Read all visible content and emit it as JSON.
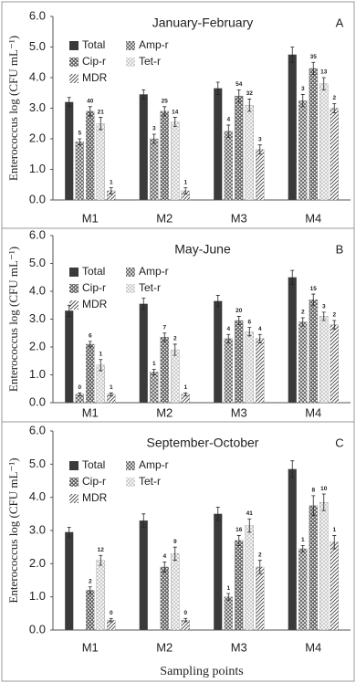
{
  "chart_data": [
    {
      "type": "bar",
      "title": "January-February",
      "panel_label": "A",
      "y_label": "Enterococcus log (CFU mL⁻¹)",
      "categories": [
        "M1",
        "M2",
        "M3",
        "M4"
      ],
      "ylim": [
        0,
        6
      ],
      "yticks": [
        {
          "value": 0,
          "label": "0.0"
        },
        {
          "value": 1,
          "label": "1.0"
        },
        {
          "value": 2,
          "label": "2.0"
        },
        {
          "value": 3,
          "label": "3.0"
        },
        {
          "value": 4,
          "label": "4.0"
        },
        {
          "value": 5,
          "label": "5.0"
        },
        {
          "value": 6,
          "label": "6.0"
        }
      ],
      "series": [
        {
          "name": "Total",
          "color": "#3a3a3a",
          "pattern": "solid",
          "values": [
            3.2,
            3.45,
            3.65,
            4.75
          ],
          "errors": [
            0.15,
            0.15,
            0.2,
            0.25
          ],
          "labels": [
            null,
            null,
            null,
            null
          ]
        },
        {
          "name": "Amp-r",
          "color": "#555555",
          "pattern": "crosshatch",
          "values": [
            1.9,
            2.0,
            2.25,
            3.25
          ],
          "errors": [
            0.1,
            0.15,
            0.2,
            0.2
          ],
          "labels": [
            5,
            3,
            4,
            3
          ]
        },
        {
          "name": "Cip-r",
          "color": "#666666",
          "pattern": "dots",
          "values": [
            2.9,
            2.9,
            3.4,
            4.3
          ],
          "errors": [
            0.15,
            0.15,
            0.2,
            0.2
          ],
          "labels": [
            40,
            25,
            54,
            35
          ]
        },
        {
          "name": "Tet-r",
          "color": "#888888",
          "pattern": "dashes",
          "values": [
            2.5,
            2.55,
            3.1,
            3.8
          ],
          "errors": [
            0.2,
            0.15,
            0.2,
            0.2
          ],
          "labels": [
            21,
            14,
            32,
            13
          ]
        },
        {
          "name": "MDR",
          "color": "#444444",
          "pattern": "diagonal",
          "values": [
            0.3,
            0.3,
            1.65,
            3.0
          ],
          "errors": [
            0.1,
            0.1,
            0.15,
            0.15
          ],
          "labels": [
            1,
            1,
            3,
            2
          ]
        }
      ]
    },
    {
      "type": "bar",
      "title": "May-June",
      "panel_label": "B",
      "y_label": "Enterococcus log (CFU mL⁻¹)",
      "categories": [
        "M1",
        "M2",
        "M3",
        "M4"
      ],
      "ylim": [
        0,
        6
      ],
      "yticks": [
        {
          "value": 0,
          "label": "0.0"
        },
        {
          "value": 1,
          "label": "1.0"
        },
        {
          "value": 2,
          "label": "2.0"
        },
        {
          "value": 3,
          "label": "3.0"
        },
        {
          "value": 4,
          "label": "4.0"
        },
        {
          "value": 5,
          "label": "5.0"
        },
        {
          "value": 6,
          "label": "6.0"
        }
      ],
      "series": [
        {
          "name": "Total",
          "color": "#3a3a3a",
          "pattern": "solid",
          "values": [
            3.3,
            3.55,
            3.65,
            4.5
          ],
          "errors": [
            0.2,
            0.2,
            0.2,
            0.25
          ],
          "labels": [
            null,
            null,
            null,
            null
          ]
        },
        {
          "name": "Amp-r",
          "color": "#555555",
          "pattern": "crosshatch",
          "values": [
            0.3,
            1.1,
            2.3,
            2.9
          ],
          "errors": [
            0.05,
            0.1,
            0.15,
            0.15
          ],
          "labels": [
            0,
            1,
            4,
            2
          ]
        },
        {
          "name": "Cip-r",
          "color": "#666666",
          "pattern": "dots",
          "values": [
            2.1,
            2.35,
            2.95,
            3.7
          ],
          "errors": [
            0.1,
            0.15,
            0.15,
            0.2
          ],
          "labels": [
            6,
            7,
            20,
            15
          ]
        },
        {
          "name": "Tet-r",
          "color": "#888888",
          "pattern": "dashes",
          "values": [
            1.35,
            1.9,
            2.55,
            3.1
          ],
          "errors": [
            0.2,
            0.2,
            0.15,
            0.15
          ],
          "labels": [
            1,
            2,
            6,
            3
          ]
        },
        {
          "name": "MDR",
          "color": "#444444",
          "pattern": "diagonal",
          "values": [
            0.3,
            0.3,
            2.3,
            2.8
          ],
          "errors": [
            0.05,
            0.05,
            0.15,
            0.15
          ],
          "labels": [
            1,
            1,
            4,
            2
          ]
        }
      ]
    },
    {
      "type": "bar",
      "title": "September-October",
      "panel_label": "C",
      "y_label": "Enterococcus log (CFU mL⁻¹)",
      "x_label": "Sampling points",
      "categories": [
        "M1",
        "M2",
        "M3",
        "M4"
      ],
      "ylim": [
        0,
        6
      ],
      "yticks": [
        {
          "value": 0,
          "label": "0.0"
        },
        {
          "value": 1,
          "label": "1.0"
        },
        {
          "value": 2,
          "label": "2.0"
        },
        {
          "value": 3,
          "label": "3.0"
        },
        {
          "value": 4,
          "label": "4.0"
        },
        {
          "value": 5,
          "label": "5.0"
        },
        {
          "value": 6,
          "label": "6.0"
        }
      ],
      "series": [
        {
          "name": "Total",
          "color": "#3a3a3a",
          "pattern": "solid",
          "values": [
            2.95,
            3.3,
            3.5,
            4.85
          ],
          "errors": [
            0.15,
            0.2,
            0.2,
            0.25
          ],
          "labels": [
            null,
            null,
            null,
            null
          ]
        },
        {
          "name": "Amp-r",
          "color": "#555555",
          "pattern": "crosshatch",
          "values": [
            null,
            null,
            1.0,
            2.45
          ],
          "errors": [
            null,
            null,
            0.1,
            0.1
          ],
          "labels": [
            null,
            null,
            1,
            1
          ]
        },
        {
          "name": "Cip-r",
          "color": "#666666",
          "pattern": "dots",
          "values": [
            1.2,
            1.9,
            2.7,
            3.75
          ],
          "errors": [
            0.1,
            0.15,
            0.15,
            0.3
          ],
          "labels": [
            2,
            4,
            16,
            8
          ]
        },
        {
          "name": "Tet-r",
          "color": "#888888",
          "pattern": "dashes",
          "values": [
            2.1,
            2.3,
            3.15,
            3.85
          ],
          "errors": [
            0.15,
            0.2,
            0.2,
            0.25
          ],
          "labels": [
            12,
            9,
            41,
            10
          ]
        },
        {
          "name": "MDR",
          "color": "#444444",
          "pattern": "diagonal",
          "values": [
            0.3,
            0.3,
            1.9,
            2.65
          ],
          "errors": [
            0.05,
            0.05,
            0.2,
            0.2
          ],
          "labels": [
            0,
            0,
            2,
            1
          ]
        }
      ]
    }
  ]
}
